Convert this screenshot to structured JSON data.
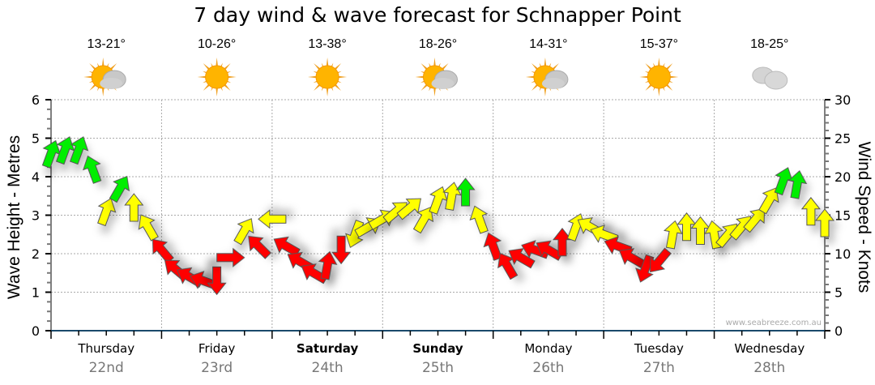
{
  "title": "7 day wind & wave forecast for Schnapper Point",
  "days": [
    {
      "name": "Thursday",
      "date": "22nd",
      "temp": "13-21°",
      "icon": "sun-cloud",
      "bold": false
    },
    {
      "name": "Friday",
      "date": "23rd",
      "temp": "10-26°",
      "icon": "sun",
      "bold": false
    },
    {
      "name": "Saturday",
      "date": "24th",
      "temp": "13-38°",
      "icon": "sun",
      "bold": true
    },
    {
      "name": "Sunday",
      "date": "25th",
      "temp": "18-26°",
      "icon": "sun-cloud",
      "bold": true
    },
    {
      "name": "Monday",
      "date": "26th",
      "temp": "14-31°",
      "icon": "sun-cloud",
      "bold": false
    },
    {
      "name": "Tuesday",
      "date": "27th",
      "temp": "15-37°",
      "icon": "sun",
      "bold": false
    },
    {
      "name": "Wednesday",
      "date": "28th",
      "temp": "18-25°",
      "icon": "cloud",
      "bold": false
    }
  ],
  "watermark": "www.seabreeze.com.au",
  "colors": {
    "calm": "#ff0000",
    "moderate": "#ffff00",
    "strong": "#00ee00",
    "axis": "#1a4a6b"
  },
  "chart_data": {
    "type": "scatter",
    "title": "7 day wind & wave forecast for Schnapper Point",
    "ylabel_left": "Wave Height - Metres",
    "ylabel_right": "Wind Speed - Knots",
    "ylim_left": [
      0,
      6
    ],
    "ylim_right": [
      0,
      30
    ],
    "yticks_left": [
      "0",
      "1",
      "2",
      "3",
      "4",
      "5",
      "6"
    ],
    "yticks_right": [
      "0",
      "5",
      "10",
      "15",
      "20",
      "25",
      "30"
    ],
    "x_unit": "hours from start",
    "xlim": [
      0,
      168
    ],
    "grid": true,
    "wind": [
      [
        0,
        23,
        20
      ],
      [
        3,
        23.5,
        20
      ],
      [
        6,
        23.5,
        20
      ],
      [
        9,
        21,
        340
      ],
      [
        12,
        15.5,
        20
      ],
      [
        15,
        18.5,
        30
      ],
      [
        18,
        16,
        0
      ],
      [
        21,
        13.5,
        330
      ],
      [
        24,
        10.5,
        320
      ],
      [
        27,
        8,
        310
      ],
      [
        30,
        7,
        300
      ],
      [
        33,
        6.5,
        290
      ],
      [
        36,
        6.5,
        180
      ],
      [
        39,
        9.5,
        90
      ],
      [
        42,
        13,
        30
      ],
      [
        45,
        11,
        315
      ],
      [
        48,
        14.5,
        270
      ],
      [
        51,
        11,
        300
      ],
      [
        54,
        9,
        300
      ],
      [
        57,
        7.5,
        300
      ],
      [
        60,
        8.5,
        10
      ],
      [
        63,
        10.5,
        180
      ],
      [
        66,
        12.5,
        200
      ],
      [
        69,
        13.5,
        60
      ],
      [
        72,
        14.5,
        60
      ],
      [
        75,
        15.5,
        50
      ],
      [
        78,
        16,
        50
      ],
      [
        81,
        14.5,
        30
      ],
      [
        84,
        17,
        20
      ],
      [
        87,
        17.5,
        10
      ],
      [
        90,
        18,
        0
      ],
      [
        93,
        14.5,
        340
      ],
      [
        96,
        11,
        340
      ],
      [
        99,
        8.5,
        330
      ],
      [
        102,
        9.5,
        300
      ],
      [
        105,
        10.5,
        290
      ],
      [
        108,
        10.5,
        300
      ],
      [
        111,
        11.5,
        0
      ],
      [
        114,
        13.5,
        20
      ],
      [
        117,
        13.5,
        300
      ],
      [
        120,
        12.5,
        290
      ],
      [
        123,
        11,
        290
      ],
      [
        126,
        9.5,
        300
      ],
      [
        129,
        8,
        200
      ],
      [
        132,
        9,
        220
      ],
      [
        135,
        12.5,
        10
      ],
      [
        138,
        13.5,
        0
      ],
      [
        141,
        13,
        0
      ],
      [
        144,
        12.5,
        350
      ],
      [
        147,
        12.5,
        40
      ],
      [
        150,
        13.5,
        40
      ],
      [
        153,
        14.5,
        40
      ],
      [
        156,
        17,
        30
      ],
      [
        159,
        19.5,
        20
      ],
      [
        162,
        19,
        10
      ],
      [
        165,
        15.5,
        0
      ],
      [
        168,
        14,
        0
      ]
    ],
    "wind_fields": [
      "hour",
      "knots",
      "arrow_direction_deg"
    ]
  }
}
